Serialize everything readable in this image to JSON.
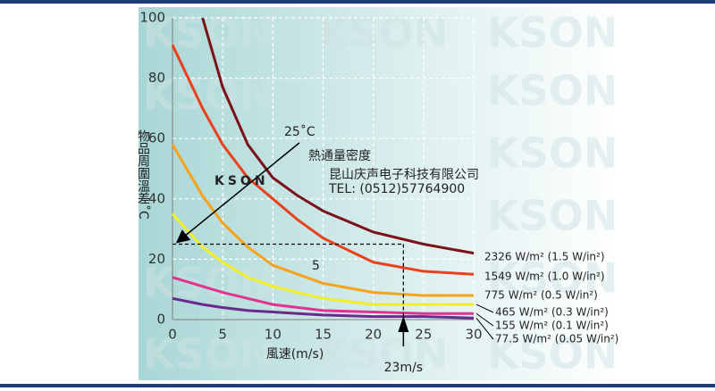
{
  "chart_data": {
    "type": "line",
    "x_label": "風速(m/s)",
    "y_label": "物品周圍溫差˚C",
    "x": [
      0,
      3,
      5,
      7.5,
      10,
      12.5,
      15,
      20,
      25,
      30
    ],
    "series": [
      {
        "name": "2326 W/m² (1.5 W/in²)",
        "color": "#7a1218",
        "values": [
          null,
          100,
          77,
          58,
          47,
          41,
          36,
          29,
          25,
          22
        ]
      },
      {
        "name": "1549 W/m² (1.0 W/in²)",
        "color": "#e8421c",
        "values": [
          91,
          70,
          58,
          47,
          40,
          33,
          27,
          19,
          16,
          15
        ]
      },
      {
        "name": "775 W/m² (0.5 W/in²)",
        "color": "#f7a21b",
        "values": [
          58,
          41,
          32,
          24,
          18,
          15,
          12,
          9,
          8,
          8
        ]
      },
      {
        "name": "465 W/m² (0.3 W/in²)",
        "color": "#f2ee2a",
        "values": [
          35,
          24,
          19,
          14,
          11,
          9,
          7,
          5,
          5,
          5
        ]
      },
      {
        "name": "155 W/m² (0.1 W/in²)",
        "color": "#e0338f",
        "values": [
          14,
          11,
          9,
          7,
          5,
          4,
          3,
          2.5,
          2,
          2
        ]
      },
      {
        "name": "77.5 W/m² (0.05 W/in²)",
        "color": "#6a2a8c",
        "values": [
          7,
          5,
          4,
          3,
          2.5,
          2,
          1.5,
          1,
          1,
          0.5
        ]
      }
    ],
    "xlim": [
      0,
      30
    ],
    "xticks": [
      0,
      5,
      10,
      15,
      20,
      25,
      30
    ],
    "ylim": [
      0,
      100
    ],
    "yticks": [
      0,
      20,
      40,
      60,
      80,
      100
    ],
    "grid": true,
    "reference": {
      "x": 23,
      "y": 25
    },
    "annotations": {
      "temperature": "25˚C",
      "heat_flux": "熱通量密度",
      "curve_number": "5",
      "speed": "23m/s"
    },
    "watermark": "KSON",
    "company": "昆山庆声电子科技有限公司",
    "phone": "TEL: (0512)57764900"
  }
}
